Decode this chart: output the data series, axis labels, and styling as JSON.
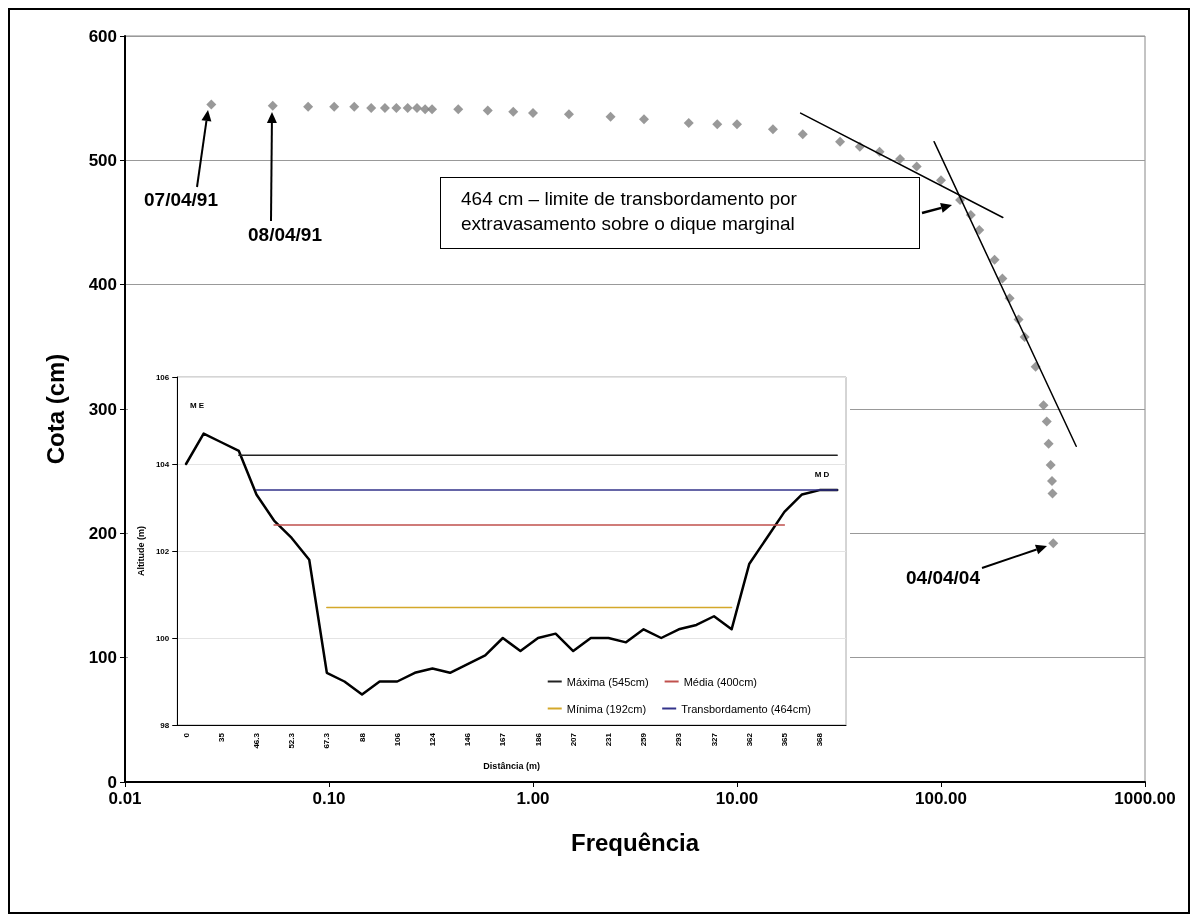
{
  "chart_data": [
    {
      "type": "scatter",
      "xlabel": "Frequência",
      "ylabel": "Cota (cm)",
      "log": "x",
      "grid": "y",
      "marker": "diamond",
      "xlim": [
        0.01,
        1000
      ],
      "xticks": [
        {
          "value": 0.01,
          "label": "0.01"
        },
        {
          "value": 0.1,
          "label": "0.10"
        },
        {
          "value": 1,
          "label": "1.00"
        },
        {
          "value": 10,
          "label": "10.00"
        },
        {
          "value": 100,
          "label": "100.00"
        },
        {
          "value": 1000,
          "label": "1000.00"
        }
      ],
      "ylim": [
        0,
        600
      ],
      "yticks": [
        0,
        100,
        200,
        300,
        400,
        500,
        600
      ],
      "series": [
        {
          "color": "#808080",
          "x": [
            0.0265,
            0.053,
            0.079,
            0.106,
            0.133,
            0.161,
            0.188,
            0.214,
            0.243,
            0.27,
            0.296,
            0.32,
            0.43,
            0.6,
            0.8,
            1.0,
            1.5,
            2.4,
            3.5,
            5.8,
            8,
            10,
            15,
            21,
            32,
            40,
            50,
            63,
            76,
            100,
            124,
            140,
            154,
            183,
            200,
            217,
            240,
            257,
            291,
            318,
            330,
            337,
            345,
            350,
            352,
            355
          ],
          "values": [
            545,
            544,
            543,
            543,
            543,
            542,
            542,
            542,
            542,
            542,
            541,
            541,
            541,
            540,
            539,
            538,
            537,
            535,
            533,
            530,
            529,
            529,
            525,
            521,
            515,
            511,
            507,
            501,
            495,
            484,
            468,
            456,
            444,
            420,
            405,
            389,
            372,
            358,
            334,
            303,
            290,
            272,
            255,
            242,
            232,
            192
          ]
        },
        {
          "type": "line",
          "marker": "none",
          "color": "#000000",
          "x": [
            20.5,
            201
          ],
          "values": [
            538,
            454
          ]
        },
        {
          "type": "line",
          "marker": "none",
          "color": "#000000",
          "x": [
            92.5,
            460
          ],
          "values": [
            515,
            270
          ]
        }
      ],
      "annotations": [
        "07/04/91",
        "08/04/91",
        "464 cm – limite de transbordamento por extravasamento sobre o dique marginal",
        "04/04/04"
      ]
    },
    {
      "type": "line",
      "xlabel": "Distância (m)",
      "ylabel": "Altitude (m)",
      "grid": "y",
      "legend": "bottom right",
      "marker": "none",
      "categories": [
        "0",
        null,
        "35",
        null,
        "46.3",
        null,
        "52.3",
        null,
        "67.3",
        null,
        "88",
        null,
        "106",
        null,
        "124",
        null,
        "146",
        null,
        "167",
        null,
        "186",
        null,
        "207",
        null,
        "231",
        null,
        "259",
        null,
        "293",
        null,
        "327",
        null,
        "362",
        null,
        "365",
        null,
        "368",
        null
      ],
      "ylim": [
        98,
        106
      ],
      "yticks": [
        98,
        100,
        102,
        104,
        106
      ],
      "series": [
        {
          "color": "#000000",
          "values": [
            104.0,
            104.7,
            104.5,
            104.3,
            103.3,
            102.7,
            102.3,
            101.8,
            99.2,
            99.0,
            98.7,
            99.0,
            99.0,
            99.2,
            99.3,
            99.2,
            99.4,
            99.6,
            100.0,
            99.7,
            100.0,
            100.1,
            99.7,
            100.0,
            100.0,
            99.9,
            100.2,
            100.0,
            100.2,
            100.3,
            100.5,
            100.2,
            101.7,
            102.3,
            102.9,
            103.3,
            103.4,
            103.4
          ]
        },
        {
          "name": "Máxima (545cm)",
          "color": "#222222",
          "values": [
            null,
            null,
            null,
            104.2,
            104.2,
            104.2,
            104.2,
            104.2,
            104.2,
            104.2,
            104.2,
            104.2,
            104.2,
            104.2,
            104.2,
            104.2,
            104.2,
            104.2,
            104.2,
            104.2,
            104.2,
            104.2,
            104.2,
            104.2,
            104.2,
            104.2,
            104.2,
            104.2,
            104.2,
            104.2,
            104.2,
            104.2,
            104.2,
            104.2,
            104.2,
            104.2,
            104.2,
            104.2
          ]
        },
        {
          "name": "Média (400cm)",
          "color": "#c0504d",
          "values": [
            null,
            null,
            null,
            null,
            null,
            102.6,
            102.6,
            102.6,
            102.6,
            102.6,
            102.6,
            102.6,
            102.6,
            102.6,
            102.6,
            102.6,
            102.6,
            102.6,
            102.6,
            102.6,
            102.6,
            102.6,
            102.6,
            102.6,
            102.6,
            102.6,
            102.6,
            102.6,
            102.6,
            102.6,
            102.6,
            102.6,
            102.6,
            102.6,
            102.6,
            null,
            null,
            null
          ]
        },
        {
          "name": "Mínima (192cm)",
          "color": "#d4a82a",
          "values": [
            null,
            null,
            null,
            null,
            null,
            null,
            null,
            null,
            100.7,
            100.7,
            100.7,
            100.7,
            100.7,
            100.7,
            100.7,
            100.7,
            100.7,
            100.7,
            100.7,
            100.7,
            100.7,
            100.7,
            100.7,
            100.7,
            100.7,
            100.7,
            100.7,
            100.7,
            100.7,
            100.7,
            100.7,
            100.7,
            null,
            null,
            null,
            null,
            null,
            null
          ]
        },
        {
          "name": "Transbordamento (464cm)",
          "color": "#33338a",
          "values": [
            null,
            null,
            null,
            null,
            103.4,
            103.4,
            103.4,
            103.4,
            103.4,
            103.4,
            103.4,
            103.4,
            103.4,
            103.4,
            103.4,
            103.4,
            103.4,
            103.4,
            103.4,
            103.4,
            103.4,
            103.4,
            103.4,
            103.4,
            103.4,
            103.4,
            103.4,
            103.4,
            103.4,
            103.4,
            103.4,
            103.4,
            103.4,
            103.4,
            103.4,
            103.4,
            103.4,
            103.4
          ]
        }
      ],
      "annotations": [
        "M E",
        "M D"
      ]
    }
  ]
}
